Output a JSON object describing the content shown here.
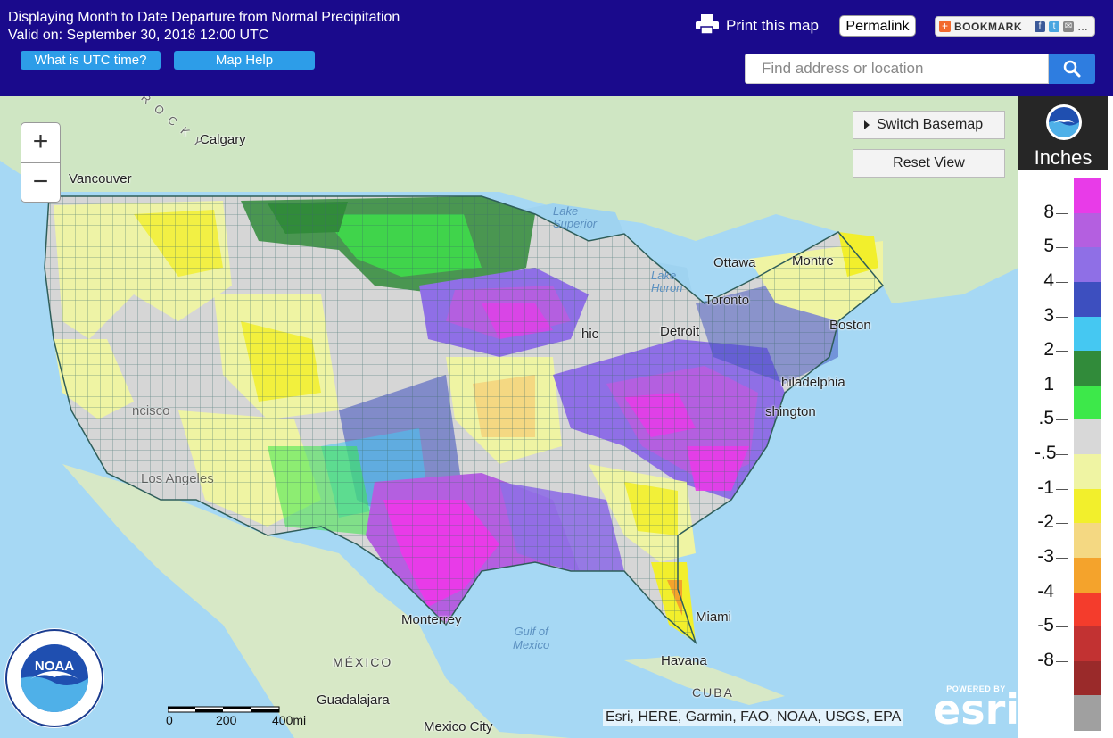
{
  "header": {
    "title_line1": "Displaying Month to Date Departure from Normal Precipitation",
    "title_line2": "Valid on: September 30, 2018 12:00 UTC",
    "utc_button": "What is UTC time?",
    "help_button": "Map Help",
    "print_label": "Print this map",
    "permalink_label": "Permalink",
    "bookmark_label": "BOOKMARK",
    "search_placeholder": "Find address or location"
  },
  "map": {
    "switch_basemap": "Switch Basemap",
    "reset_view": "Reset View",
    "zoom_in": "+",
    "zoom_out": "−",
    "attribution": "Esri, HERE, Garmin, FAO, NOAA, USGS, EPA",
    "esri_powered": "POWERED BY",
    "esri_word": "esri",
    "scale_labels": [
      "0",
      "200",
      "400mi"
    ],
    "places": {
      "calgary": "Calgary",
      "vancouver": "Vancouver",
      "lake_superior": "Lake\nSuperior",
      "ottawa": "Ottawa",
      "montreal": "Montre",
      "lake_huron": "Lake\nHuron",
      "toronto": "Toronto",
      "detroit": "Detroit",
      "chicago": "hic",
      "boston": "Boston",
      "philadelphia": "hiladelphia",
      "washington": "shington",
      "san_francisco": "ncisco",
      "los_angeles": "Los Angeles",
      "monterrey": "Monterrey",
      "gulf_of_mexico": "Gulf of\nMexico",
      "miami": "Miami",
      "havana": "Havana",
      "cuba": "CUBA",
      "mexico": "MÉXICO",
      "guadalajara": "Guadalajara",
      "mexico_city": "Mexico City",
      "rocky": "R O C K Y"
    },
    "help_icon": "?"
  },
  "legend": {
    "unit": "Inches",
    "ticks": [
      "8",
      "5",
      "4",
      "3",
      "2",
      "1",
      ".5",
      "-.5",
      "-1",
      "-2",
      "-3",
      "-4",
      "-5",
      "-8"
    ],
    "colors": [
      "#e83be8",
      "#b45fe0",
      "#8f6fe6",
      "#3d4fbf",
      "#45c8f2",
      "#318b3a",
      "#3de84a",
      "#d8d8d8",
      "#eff4a3",
      "#f2ef2c",
      "#f4d882",
      "#f4a32c",
      "#f43c2c",
      "#c23232",
      "#9a2a2a",
      "#a0a0a0"
    ]
  }
}
